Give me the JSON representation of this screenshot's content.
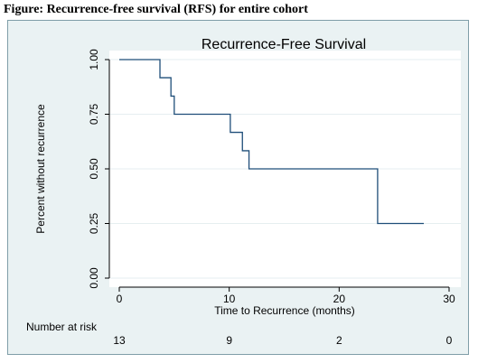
{
  "figure_caption": "Figure: Recurrence-free survival (RFS) for entire cohort",
  "chart_data": {
    "type": "line",
    "step": true,
    "title": "Recurrence-Free Survival",
    "xlabel": "Time to Recurrence (months)",
    "ylabel": "Percent without recurrence",
    "xlim": [
      0,
      30
    ],
    "ylim": [
      0,
      1
    ],
    "x_ticks": [
      "0",
      "10",
      "20",
      "30"
    ],
    "y_ticks": [
      "0.00",
      "0.25",
      "0.50",
      "0.75",
      "1.00"
    ],
    "grid": true,
    "series": [
      {
        "x": [
          0,
          3.7,
          4.7,
          5.0,
          10.1,
          11.2,
          11.8,
          23.5,
          27.7
        ],
        "y": [
          1.0,
          0.917,
          0.833,
          0.75,
          0.667,
          0.583,
          0.5,
          0.25,
          0.25
        ]
      }
    ],
    "risk_table": {
      "label": "Number at risk",
      "values": [
        "13",
        "9",
        "2",
        "0"
      ]
    },
    "colors": {
      "line": "#1f4e79",
      "plot_bg": "#ffffff",
      "outer_bg": "#eaf2f3",
      "grid": "#e6eef0"
    }
  }
}
